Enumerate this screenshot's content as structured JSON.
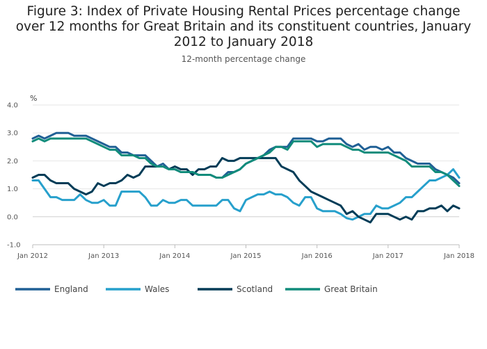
{
  "chart_data": {
    "type": "line",
    "title": "Figure 3: Index of Private Housing Rental Prices percentage change over 12 months for Great Britain and its constituent countries, January 2012 to January 2018",
    "subtitle": "12-month percentage change",
    "ylabel": "%",
    "xlabel": "",
    "ylim": [
      -1.0,
      4.0
    ],
    "y_ticks": [
      "4.0",
      "3.0",
      "2.0",
      "1.0",
      "0.0",
      "-1.0"
    ],
    "x_ticks": [
      "Jan 2012",
      "Jan 2013",
      "Jan 2014",
      "Jan 2015",
      "Jan 2016",
      "Jan 2017",
      "Jan 2018"
    ],
    "grid": true,
    "legend_position": "bottom",
    "series": [
      {
        "name": "England",
        "color": "#206095",
        "values": [
          2.8,
          2.9,
          2.8,
          2.9,
          3.0,
          3.0,
          3.0,
          2.9,
          2.9,
          2.9,
          2.8,
          2.7,
          2.6,
          2.5,
          2.5,
          2.3,
          2.3,
          2.2,
          2.2,
          2.2,
          2.0,
          1.8,
          1.9,
          1.7,
          1.7,
          1.6,
          1.6,
          1.6,
          1.5,
          1.5,
          1.5,
          1.4,
          1.4,
          1.6,
          1.6,
          1.7,
          1.9,
          2.0,
          2.1,
          2.2,
          2.4,
          2.5,
          2.5,
          2.5,
          2.8,
          2.8,
          2.8,
          2.8,
          2.7,
          2.7,
          2.8,
          2.8,
          2.8,
          2.6,
          2.5,
          2.6,
          2.4,
          2.5,
          2.5,
          2.4,
          2.5,
          2.3,
          2.3,
          2.1,
          2.0,
          1.9,
          1.9,
          1.9,
          1.7,
          1.6,
          1.5,
          1.4,
          1.2
        ]
      },
      {
        "name": "Wales",
        "color": "#27a0cc",
        "values": [
          1.3,
          1.3,
          1.0,
          0.7,
          0.7,
          0.6,
          0.6,
          0.6,
          0.8,
          0.6,
          0.5,
          0.5,
          0.6,
          0.4,
          0.4,
          0.9,
          0.9,
          0.9,
          0.9,
          0.7,
          0.4,
          0.4,
          0.6,
          0.5,
          0.5,
          0.6,
          0.6,
          0.4,
          0.4,
          0.4,
          0.4,
          0.4,
          0.6,
          0.6,
          0.3,
          0.2,
          0.6,
          0.7,
          0.8,
          0.8,
          0.9,
          0.8,
          0.8,
          0.7,
          0.5,
          0.4,
          0.7,
          0.7,
          0.3,
          0.2,
          0.2,
          0.2,
          0.1,
          -0.05,
          -0.1,
          0.0,
          0.1,
          0.1,
          0.4,
          0.3,
          0.3,
          0.4,
          0.5,
          0.7,
          0.7,
          0.9,
          1.1,
          1.3,
          1.3,
          1.4,
          1.5,
          1.7,
          1.4
        ]
      },
      {
        "name": "Scotland",
        "color": "#003c57",
        "values": [
          1.4,
          1.5,
          1.5,
          1.3,
          1.2,
          1.2,
          1.2,
          1.0,
          0.9,
          0.8,
          0.9,
          1.2,
          1.1,
          1.2,
          1.2,
          1.3,
          1.5,
          1.4,
          1.5,
          1.8,
          1.8,
          1.8,
          1.8,
          1.7,
          1.8,
          1.7,
          1.7,
          1.5,
          1.7,
          1.7,
          1.8,
          1.8,
          2.1,
          2.0,
          2.0,
          2.1,
          2.1,
          2.1,
          2.1,
          2.1,
          2.1,
          2.1,
          1.8,
          1.7,
          1.6,
          1.3,
          1.1,
          0.9,
          0.8,
          0.7,
          0.6,
          0.5,
          0.4,
          0.1,
          0.2,
          0.0,
          -0.1,
          -0.2,
          0.1,
          0.1,
          0.1,
          0.0,
          -0.1,
          0.0,
          -0.1,
          0.2,
          0.2,
          0.3,
          0.3,
          0.4,
          0.2,
          0.4,
          0.3
        ]
      },
      {
        "name": "Great Britain",
        "color": "#118c7b",
        "values": [
          2.7,
          2.8,
          2.7,
          2.8,
          2.8,
          2.8,
          2.8,
          2.8,
          2.8,
          2.8,
          2.7,
          2.6,
          2.5,
          2.4,
          2.4,
          2.2,
          2.2,
          2.2,
          2.1,
          2.1,
          1.9,
          1.8,
          1.8,
          1.7,
          1.7,
          1.6,
          1.6,
          1.6,
          1.5,
          1.5,
          1.5,
          1.4,
          1.4,
          1.5,
          1.6,
          1.7,
          1.9,
          2.0,
          2.1,
          2.2,
          2.3,
          2.5,
          2.5,
          2.4,
          2.7,
          2.7,
          2.7,
          2.7,
          2.5,
          2.6,
          2.6,
          2.6,
          2.6,
          2.5,
          2.4,
          2.4,
          2.3,
          2.3,
          2.3,
          2.3,
          2.3,
          2.2,
          2.1,
          2.0,
          1.8,
          1.8,
          1.8,
          1.8,
          1.6,
          1.6,
          1.5,
          1.3,
          1.1
        ]
      }
    ]
  }
}
